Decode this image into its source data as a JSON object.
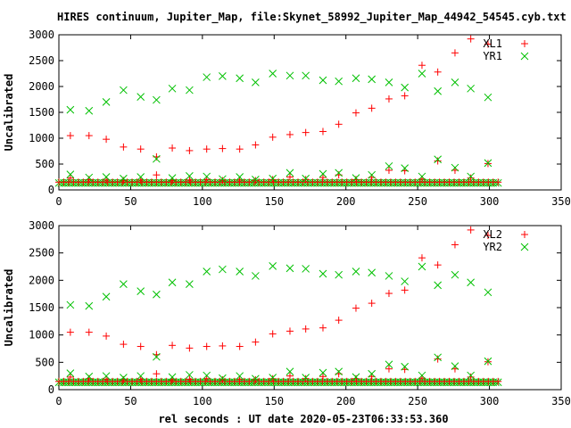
{
  "title": "HIRES continuum, Jupiter_Map, file:Skynet_58992_Jupiter_Map_44942_54545.cyb.txt",
  "xlabel": "rel seconds : UT date 2020-05-23T06:33:53.360",
  "colors": {
    "red": "#ff0000",
    "green": "#00c000",
    "frame": "#000000"
  },
  "chart_data": [
    {
      "type": "scatter",
      "ylabel": "Uncalibrated",
      "xlim": [
        0,
        350
      ],
      "ylim": [
        0,
        3000
      ],
      "xticks": [
        0,
        50,
        100,
        150,
        200,
        250,
        300,
        350
      ],
      "yticks": [
        0,
        500,
        1000,
        1500,
        2000,
        2500,
        3000
      ],
      "grid": false,
      "legend_position": "top-right",
      "series": [
        {
          "name": "XL1",
          "marker": "plus",
          "color": "#ff0000",
          "points": [
            [
              8,
              1050
            ],
            [
              21,
              1050
            ],
            [
              33,
              980
            ],
            [
              45,
              830
            ],
            [
              57,
              790
            ],
            [
              68,
              640
            ],
            [
              79,
              810
            ],
            [
              91,
              760
            ],
            [
              103,
              790
            ],
            [
              114,
              800
            ],
            [
              126,
              790
            ],
            [
              137,
              870
            ],
            [
              149,
              1020
            ],
            [
              161,
              1070
            ],
            [
              172,
              1110
            ],
            [
              184,
              1130
            ],
            [
              195,
              1270
            ],
            [
              207,
              1490
            ],
            [
              218,
              1580
            ],
            [
              230,
              1760
            ],
            [
              241,
              1820
            ],
            [
              253,
              2410
            ],
            [
              264,
              2280
            ],
            [
              276,
              2650
            ],
            [
              287,
              2920
            ],
            [
              299,
              2820
            ]
          ]
        },
        {
          "name": "YR1",
          "marker": "cross",
          "color": "#00c000",
          "points": [
            [
              8,
              1550
            ],
            [
              21,
              1530
            ],
            [
              33,
              1700
            ],
            [
              45,
              1930
            ],
            [
              57,
              1800
            ],
            [
              68,
              1740
            ],
            [
              79,
              1960
            ],
            [
              91,
              1930
            ],
            [
              103,
              2180
            ],
            [
              114,
              2200
            ],
            [
              126,
              2160
            ],
            [
              137,
              2080
            ],
            [
              149,
              2250
            ],
            [
              161,
              2210
            ],
            [
              172,
              2210
            ],
            [
              184,
              2120
            ],
            [
              195,
              2100
            ],
            [
              207,
              2160
            ],
            [
              218,
              2140
            ],
            [
              230,
              2080
            ],
            [
              241,
              1980
            ],
            [
              253,
              2250
            ],
            [
              264,
              1910
            ],
            [
              276,
              2080
            ],
            [
              287,
              1960
            ],
            [
              299,
              1790
            ]
          ]
        },
        {
          "name": "",
          "marker": "plus",
          "color": "#ff0000",
          "points": [
            [
              8,
              230
            ],
            [
              21,
              200
            ],
            [
              33,
              190
            ],
            [
              45,
              180
            ],
            [
              57,
              190
            ],
            [
              68,
              290
            ],
            [
              79,
              180
            ],
            [
              91,
              190
            ],
            [
              103,
              200
            ],
            [
              114,
              180
            ],
            [
              126,
              190
            ],
            [
              137,
              180
            ],
            [
              149,
              200
            ],
            [
              161,
              250
            ],
            [
              172,
              200
            ],
            [
              184,
              240
            ],
            [
              195,
              290
            ],
            [
              207,
              200
            ],
            [
              218,
              240
            ],
            [
              230,
              380
            ],
            [
              241,
              370
            ],
            [
              253,
              210
            ],
            [
              264,
              560
            ],
            [
              276,
              380
            ],
            [
              287,
              230
            ],
            [
              299,
              510
            ]
          ]
        },
        {
          "name": "",
          "marker": "cross",
          "color": "#00c000",
          "points": [
            [
              8,
              300
            ],
            [
              21,
              240
            ],
            [
              33,
              250
            ],
            [
              45,
              220
            ],
            [
              57,
              250
            ],
            [
              68,
              600
            ],
            [
              79,
              230
            ],
            [
              91,
              270
            ],
            [
              103,
              260
            ],
            [
              114,
              210
            ],
            [
              126,
              250
            ],
            [
              137,
              200
            ],
            [
              149,
              220
            ],
            [
              161,
              330
            ],
            [
              172,
              220
            ],
            [
              184,
              310
            ],
            [
              195,
              330
            ],
            [
              207,
              230
            ],
            [
              218,
              290
            ],
            [
              230,
              460
            ],
            [
              241,
              420
            ],
            [
              253,
              260
            ],
            [
              264,
              590
            ],
            [
              276,
              430
            ],
            [
              287,
              260
            ],
            [
              299,
              520
            ]
          ]
        }
      ],
      "baseline": {
        "x_start": 0,
        "x_end": 306,
        "red_y": 150,
        "green_y": 135
      }
    },
    {
      "type": "scatter",
      "ylabel": "Uncalibrated",
      "xlim": [
        0,
        350
      ],
      "ylim": [
        0,
        3000
      ],
      "xticks": [
        0,
        50,
        100,
        150,
        200,
        250,
        300,
        350
      ],
      "yticks": [
        0,
        500,
        1000,
        1500,
        2000,
        2500,
        3000
      ],
      "grid": false,
      "legend_position": "top-right",
      "series": [
        {
          "name": "XL2",
          "marker": "plus",
          "color": "#ff0000",
          "points": [
            [
              8,
              1050
            ],
            [
              21,
              1050
            ],
            [
              33,
              980
            ],
            [
              45,
              830
            ],
            [
              57,
              790
            ],
            [
              68,
              640
            ],
            [
              79,
              810
            ],
            [
              91,
              760
            ],
            [
              103,
              790
            ],
            [
              114,
              800
            ],
            [
              126,
              790
            ],
            [
              137,
              870
            ],
            [
              149,
              1020
            ],
            [
              161,
              1070
            ],
            [
              172,
              1110
            ],
            [
              184,
              1130
            ],
            [
              195,
              1270
            ],
            [
              207,
              1490
            ],
            [
              218,
              1580
            ],
            [
              230,
              1760
            ],
            [
              241,
              1820
            ],
            [
              253,
              2410
            ],
            [
              264,
              2280
            ],
            [
              276,
              2650
            ],
            [
              287,
              2920
            ],
            [
              299,
              2820
            ]
          ]
        },
        {
          "name": "YR2",
          "marker": "cross",
          "color": "#00c000",
          "points": [
            [
              8,
              1550
            ],
            [
              21,
              1530
            ],
            [
              33,
              1700
            ],
            [
              45,
              1930
            ],
            [
              57,
              1800
            ],
            [
              68,
              1740
            ],
            [
              79,
              1960
            ],
            [
              91,
              1930
            ],
            [
              103,
              2160
            ],
            [
              114,
              2200
            ],
            [
              126,
              2160
            ],
            [
              137,
              2080
            ],
            [
              149,
              2260
            ],
            [
              161,
              2220
            ],
            [
              172,
              2210
            ],
            [
              184,
              2120
            ],
            [
              195,
              2100
            ],
            [
              207,
              2160
            ],
            [
              218,
              2140
            ],
            [
              230,
              2080
            ],
            [
              241,
              1980
            ],
            [
              253,
              2250
            ],
            [
              264,
              1910
            ],
            [
              276,
              2100
            ],
            [
              287,
              1960
            ],
            [
              299,
              1780
            ]
          ]
        },
        {
          "name": "",
          "marker": "plus",
          "color": "#ff0000",
          "points": [
            [
              8,
              230
            ],
            [
              21,
              200
            ],
            [
              33,
              190
            ],
            [
              45,
              180
            ],
            [
              57,
              190
            ],
            [
              68,
              290
            ],
            [
              79,
              180
            ],
            [
              91,
              190
            ],
            [
              103,
              200
            ],
            [
              114,
              180
            ],
            [
              126,
              190
            ],
            [
              137,
              180
            ],
            [
              149,
              200
            ],
            [
              161,
              250
            ],
            [
              172,
              200
            ],
            [
              184,
              240
            ],
            [
              195,
              290
            ],
            [
              207,
              200
            ],
            [
              218,
              240
            ],
            [
              230,
              380
            ],
            [
              241,
              370
            ],
            [
              253,
              210
            ],
            [
              264,
              560
            ],
            [
              276,
              380
            ],
            [
              287,
              230
            ],
            [
              299,
              510
            ]
          ]
        },
        {
          "name": "",
          "marker": "cross",
          "color": "#00c000",
          "points": [
            [
              8,
              300
            ],
            [
              21,
              240
            ],
            [
              33,
              250
            ],
            [
              45,
              220
            ],
            [
              57,
              250
            ],
            [
              68,
              600
            ],
            [
              79,
              230
            ],
            [
              91,
              270
            ],
            [
              103,
              260
            ],
            [
              114,
              210
            ],
            [
              126,
              250
            ],
            [
              137,
              200
            ],
            [
              149,
              220
            ],
            [
              161,
              330
            ],
            [
              172,
              220
            ],
            [
              184,
              310
            ],
            [
              195,
              330
            ],
            [
              207,
              230
            ],
            [
              218,
              290
            ],
            [
              230,
              460
            ],
            [
              241,
              420
            ],
            [
              253,
              260
            ],
            [
              264,
              590
            ],
            [
              276,
              430
            ],
            [
              287,
              260
            ],
            [
              299,
              520
            ]
          ]
        }
      ],
      "baseline": {
        "x_start": 0,
        "x_end": 306,
        "red_y": 150,
        "green_y": 135
      }
    }
  ]
}
